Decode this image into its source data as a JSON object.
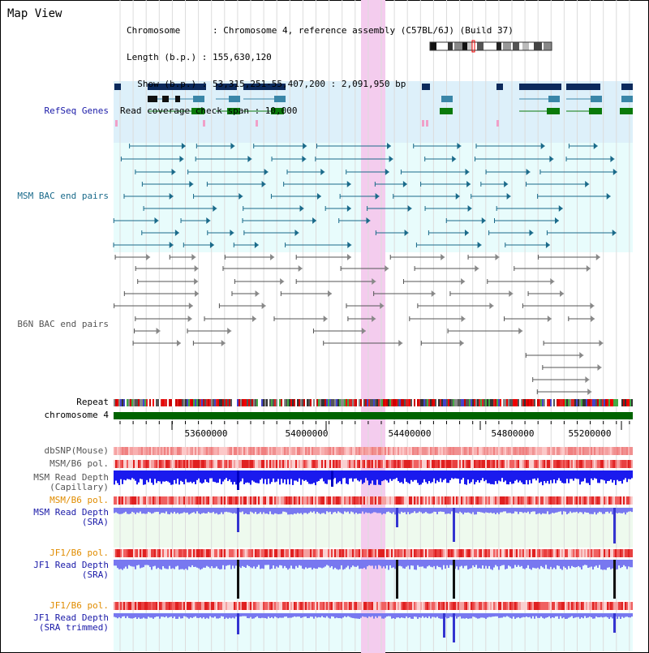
{
  "title": "Map View",
  "info": {
    "chromosome": "Chromosome      : Chromosome 4, reference assembly (C57BL/6J) (Build 37)",
    "length": "Length (b.p.) : 155,630,120",
    "show": "  Show (b.p.) : 53,315,251-55,407,200 : 2,091,950 bp",
    "coverage": "Read coverage check span : 10,000"
  },
  "tracks": {
    "refseq": "RefSeq Genes",
    "msm_bac": "MSM BAC end pairs",
    "b6n_bac": "B6N BAC end pairs",
    "repeat": "Repeat",
    "chromosome": "chromosome 4",
    "dbsnp": "dbSNP(Mouse)",
    "msm_pol1": "MSM/B6 pol.",
    "msm_depth_cap": "MSM Read Depth\n(Capillary)",
    "msm_pol2": "MSM/B6 pol.",
    "msm_depth_sra": "MSM Read Depth\n(SRA)",
    "jf1_pol1": "JF1/B6 pol.",
    "jf1_depth_sra": "JF1 Read Depth\n(SRA)",
    "jf1_pol2": "JF1/B6 pol.",
    "jf1_depth_trim": "JF1 Read Depth\n(SRA trimmed)"
  },
  "axis": {
    "ticks": [
      "53600000",
      "54000000",
      "54400000",
      "54800000",
      "55200000"
    ]
  },
  "colors": {
    "refseq_bg": "#ddf0fa",
    "msm_bg": "#e8fcfc",
    "gene_dark": "#0c2a5c",
    "gene_mid": "#3a86a8",
    "gene_green": "#0a7a0a",
    "msm_pair": "#1a6a8a",
    "b6n_pair": "#555555",
    "highlight": "#f4ccee",
    "chromosome": "#006400",
    "depth_blue": "#1a1aee",
    "depth_light": "#7878f0",
    "label_blue": "#1a1aa8",
    "label_orange": "#e08c00",
    "label_teal": "#1a6a8a",
    "label_gray": "#555555"
  }
}
